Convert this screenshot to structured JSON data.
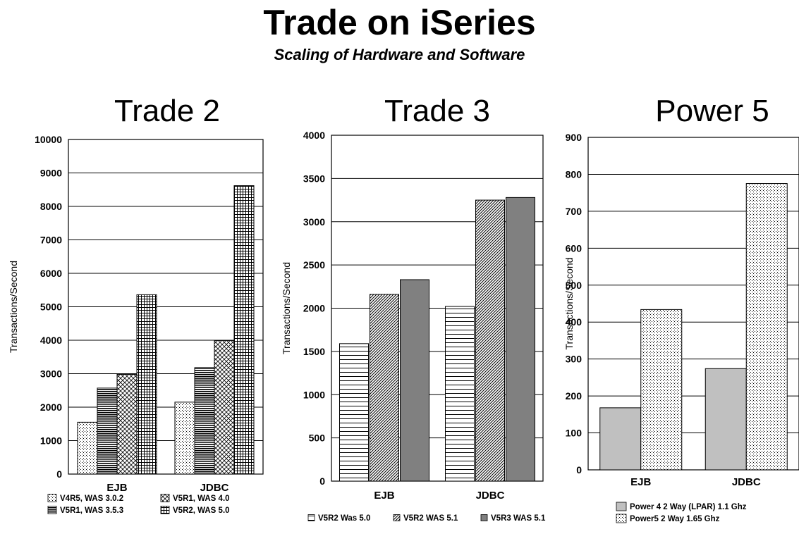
{
  "page": {
    "title": "Trade on iSeries",
    "subtitle": "Scaling of Hardware and Software"
  },
  "chart_data": [
    {
      "type": "bar",
      "title": "Trade 2",
      "ylabel": "Transactions/Second",
      "ylim": [
        0,
        10000
      ],
      "yticks": [
        0,
        1000,
        2000,
        3000,
        4000,
        5000,
        6000,
        7000,
        8000,
        9000,
        10000
      ],
      "grid": true,
      "categories": [
        "EJB",
        "JDBC"
      ],
      "series": [
        {
          "name": "V4R5, WAS 3.0.2",
          "values": [
            1550,
            2150
          ],
          "pattern": "dots",
          "color": "#ffffff"
        },
        {
          "name": "V5R1, WAS 3.5.3",
          "values": [
            2570,
            3180
          ],
          "pattern": "hstripes",
          "color": "#ffffff"
        },
        {
          "name": "V5R1, WAS 4.0",
          "values": [
            2980,
            3990
          ],
          "pattern": "crosshatch",
          "color": "#ffffff"
        },
        {
          "name": "V5R2, WAS 5.0",
          "values": [
            5360,
            8620
          ],
          "pattern": "grid",
          "color": "#ffffff"
        }
      ],
      "legend": {
        "placement": "bottom",
        "columns": 2
      }
    },
    {
      "type": "bar",
      "title": "Trade 3",
      "ylabel": "Transactions/Second",
      "ylim": [
        0,
        4000
      ],
      "yticks": [
        0,
        500,
        1000,
        1500,
        2000,
        2500,
        3000,
        3500,
        4000
      ],
      "grid": true,
      "categories": [
        "EJB",
        "JDBC"
      ],
      "series": [
        {
          "name": "V5R2 Was 5.0",
          "values": [
            1590,
            2020
          ],
          "pattern": "hlines",
          "color": "#ffffff"
        },
        {
          "name": "V5R2 WAS 5.1",
          "values": [
            2160,
            3250
          ],
          "pattern": "diag",
          "color": "#ffffff"
        },
        {
          "name": "V5R3 WAS 5.1",
          "values": [
            2330,
            3280
          ],
          "pattern": "solid",
          "color": "#808080"
        }
      ],
      "legend": {
        "placement": "bottom",
        "columns": 3
      }
    },
    {
      "type": "bar",
      "title": "Power 5",
      "ylabel": "Transactions/Second",
      "ylim": [
        0,
        900
      ],
      "yticks": [
        0,
        100,
        200,
        300,
        400,
        500,
        600,
        700,
        800,
        900
      ],
      "grid": true,
      "categories": [
        "EJB",
        "JDBC"
      ],
      "series": [
        {
          "name": "Power 4 2 Way (LPAR) 1.1 Ghz",
          "values": [
            168,
            274
          ],
          "pattern": "solid",
          "color": "#c0c0c0"
        },
        {
          "name": "Power5 2 Way 1.65 Ghz",
          "values": [
            434,
            775
          ],
          "pattern": "dots",
          "color": "#ffffff"
        }
      ],
      "legend": {
        "placement": "bottom",
        "columns": 1
      }
    }
  ]
}
